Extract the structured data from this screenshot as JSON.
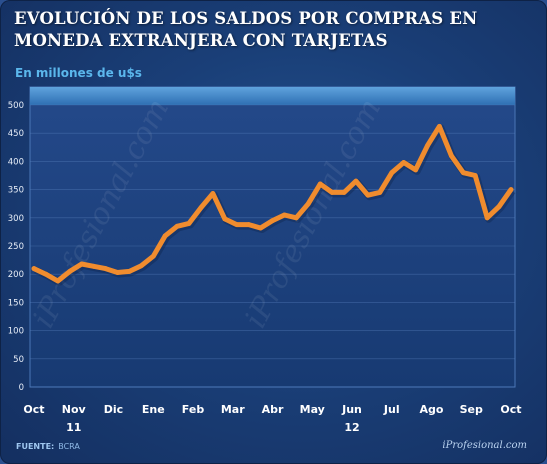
{
  "title_line1": "EVOLUCIÓN DE LOS SALDOS POR COMPRAS EN",
  "title_line2": "MONEDA EXTRANJERA CON TARJETAS",
  "unit_label": "En millones de u$s",
  "source_label": "FUENTE:",
  "source_value": "BCRA",
  "brand": "iProfesional.com",
  "watermark": "iProfesional.com",
  "colors": {
    "line": "#f08c2e",
    "plot_bg": "#1c3e78",
    "header_band": "#3d82c6",
    "grid": "#5a82bf"
  },
  "chart_data": {
    "type": "line",
    "title": "EVOLUCIÓN DE LOS SALDOS POR COMPRAS EN MONEDA EXTRANJERA CON TARJETAS",
    "ylabel": "En millones de u$s",
    "ylim": [
      0,
      500
    ],
    "yticks": [
      0,
      50,
      100,
      150,
      200,
      250,
      300,
      350,
      400,
      450,
      500
    ],
    "grid": true,
    "x_labels": [
      "Oct",
      "Nov",
      "Dic",
      "Ene",
      "Feb",
      "Mar",
      "Abr",
      "May",
      "Jun",
      "Jul",
      "Ago",
      "Sep",
      "Oct"
    ],
    "year_labels": [
      {
        "month": "Nov",
        "year": "11"
      },
      {
        "month": "Jun",
        "year": "12"
      }
    ],
    "x": [
      0,
      0.3,
      0.6,
      0.9,
      1.2,
      1.5,
      1.8,
      2.1,
      2.4,
      2.7,
      3.0,
      3.3,
      3.6,
      3.9,
      4.2,
      4.5,
      4.8,
      5.1,
      5.4,
      5.7,
      6.0,
      6.3,
      6.6,
      6.9,
      7.2,
      7.5,
      7.8,
      8.1,
      8.4,
      8.7,
      9.0,
      9.3,
      9.6,
      9.9,
      10.2,
      10.5,
      10.8,
      11.1,
      11.4,
      11.7,
      12.0
    ],
    "values": [
      210,
      200,
      188,
      205,
      218,
      214,
      210,
      203,
      205,
      215,
      232,
      268,
      285,
      290,
      318,
      343,
      298,
      288,
      288,
      282,
      295,
      305,
      300,
      325,
      360,
      345,
      345,
      365,
      340,
      345,
      380,
      398,
      385,
      428,
      462,
      410,
      380,
      375,
      300,
      320,
      350
    ]
  }
}
